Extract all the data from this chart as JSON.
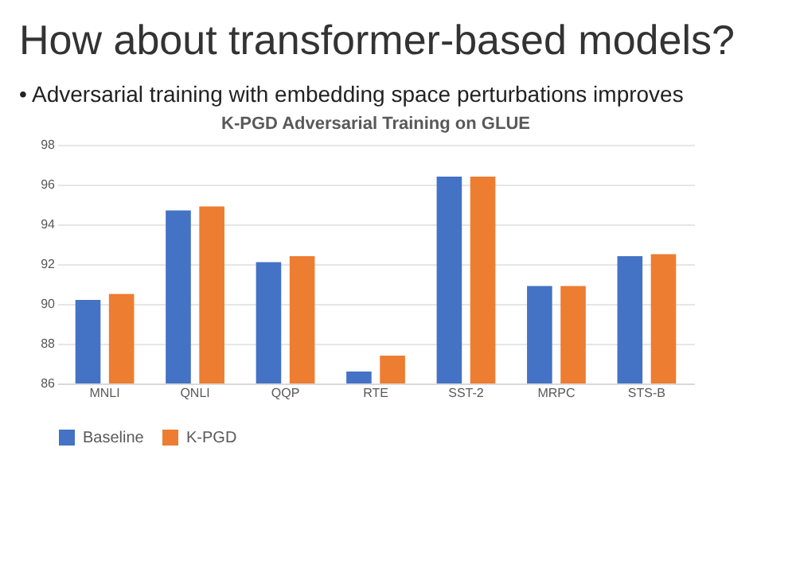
{
  "chart_data": {
    "type": "bar",
    "title": "How about transformer-based models?",
    "subtitle": "• Adversarial training with embedding space perturbations improves",
    "annotations": [
      "K-PGD Adversarial Training on GLUE"
    ],
    "categories": [
      "MNLI",
      "QNLI",
      "QQP",
      "RTE",
      "SST-2",
      "MRPC",
      "STS-B"
    ],
    "series": [
      {
        "name": "Baseline",
        "color": "#4472c4",
        "values": [
          90.2,
          94.7,
          92.1,
          86.6,
          96.4,
          90.9,
          92.4
        ]
      },
      {
        "name": "K-PGD",
        "color": "#ed7d31",
        "values": [
          90.5,
          94.9,
          92.4,
          87.4,
          96.4,
          90.9,
          92.5
        ]
      }
    ],
    "ylim": [
      86,
      98
    ],
    "yticks": [
      86,
      88,
      90,
      92,
      94,
      96,
      98
    ],
    "grid": "y",
    "legend": "bottom"
  }
}
